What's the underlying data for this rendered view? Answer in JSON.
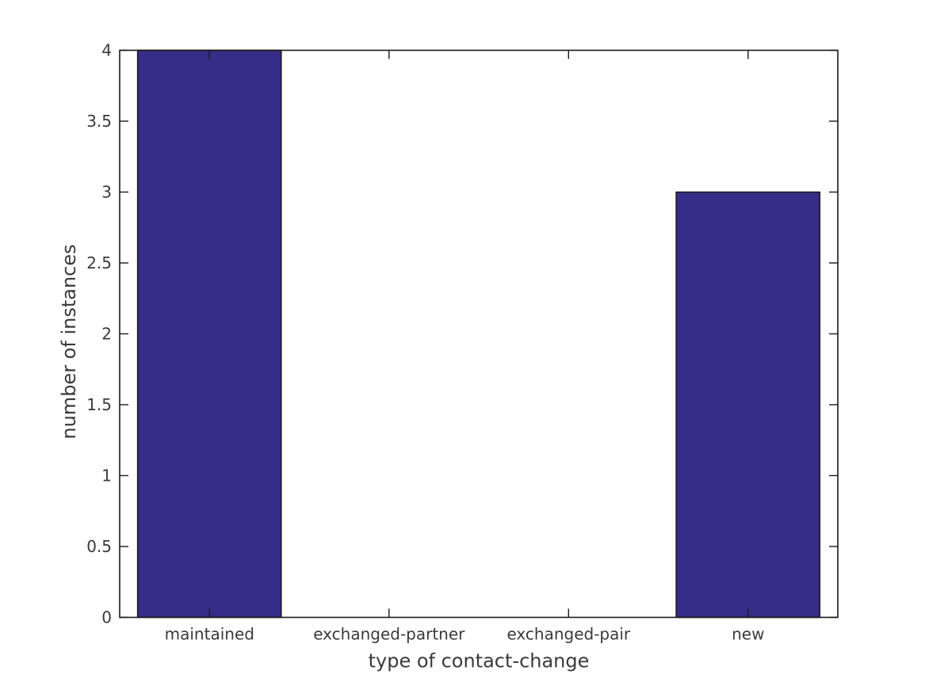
{
  "figure": {
    "background": "#ffffff",
    "frame_color": "#1a1a1a",
    "text_color": "#3a3a3a"
  },
  "chart_data": {
    "type": "bar",
    "title": "",
    "xlabel": "type of contact-change",
    "ylabel": "number of instances",
    "categories": [
      "maintained",
      "exchanged-partner",
      "exchanged-pair",
      "new"
    ],
    "values": [
      4,
      0,
      0,
      3
    ],
    "bar_color": "#352d87",
    "bar_edge_color": "#1a1a1a",
    "bar_width_fraction": 0.8,
    "xlim": [
      -0.5,
      3.5
    ],
    "ylim": [
      0,
      4
    ],
    "y_ticks": [
      0,
      0.5,
      1,
      1.5,
      2,
      2.5,
      3,
      3.5,
      4
    ],
    "y_tick_labels": [
      "0",
      "0.5",
      "1",
      "1.5",
      "2",
      "2.5",
      "3",
      "3.5",
      "4"
    ],
    "grid": false,
    "legend": null,
    "box": true,
    "tick_direction": "in"
  }
}
